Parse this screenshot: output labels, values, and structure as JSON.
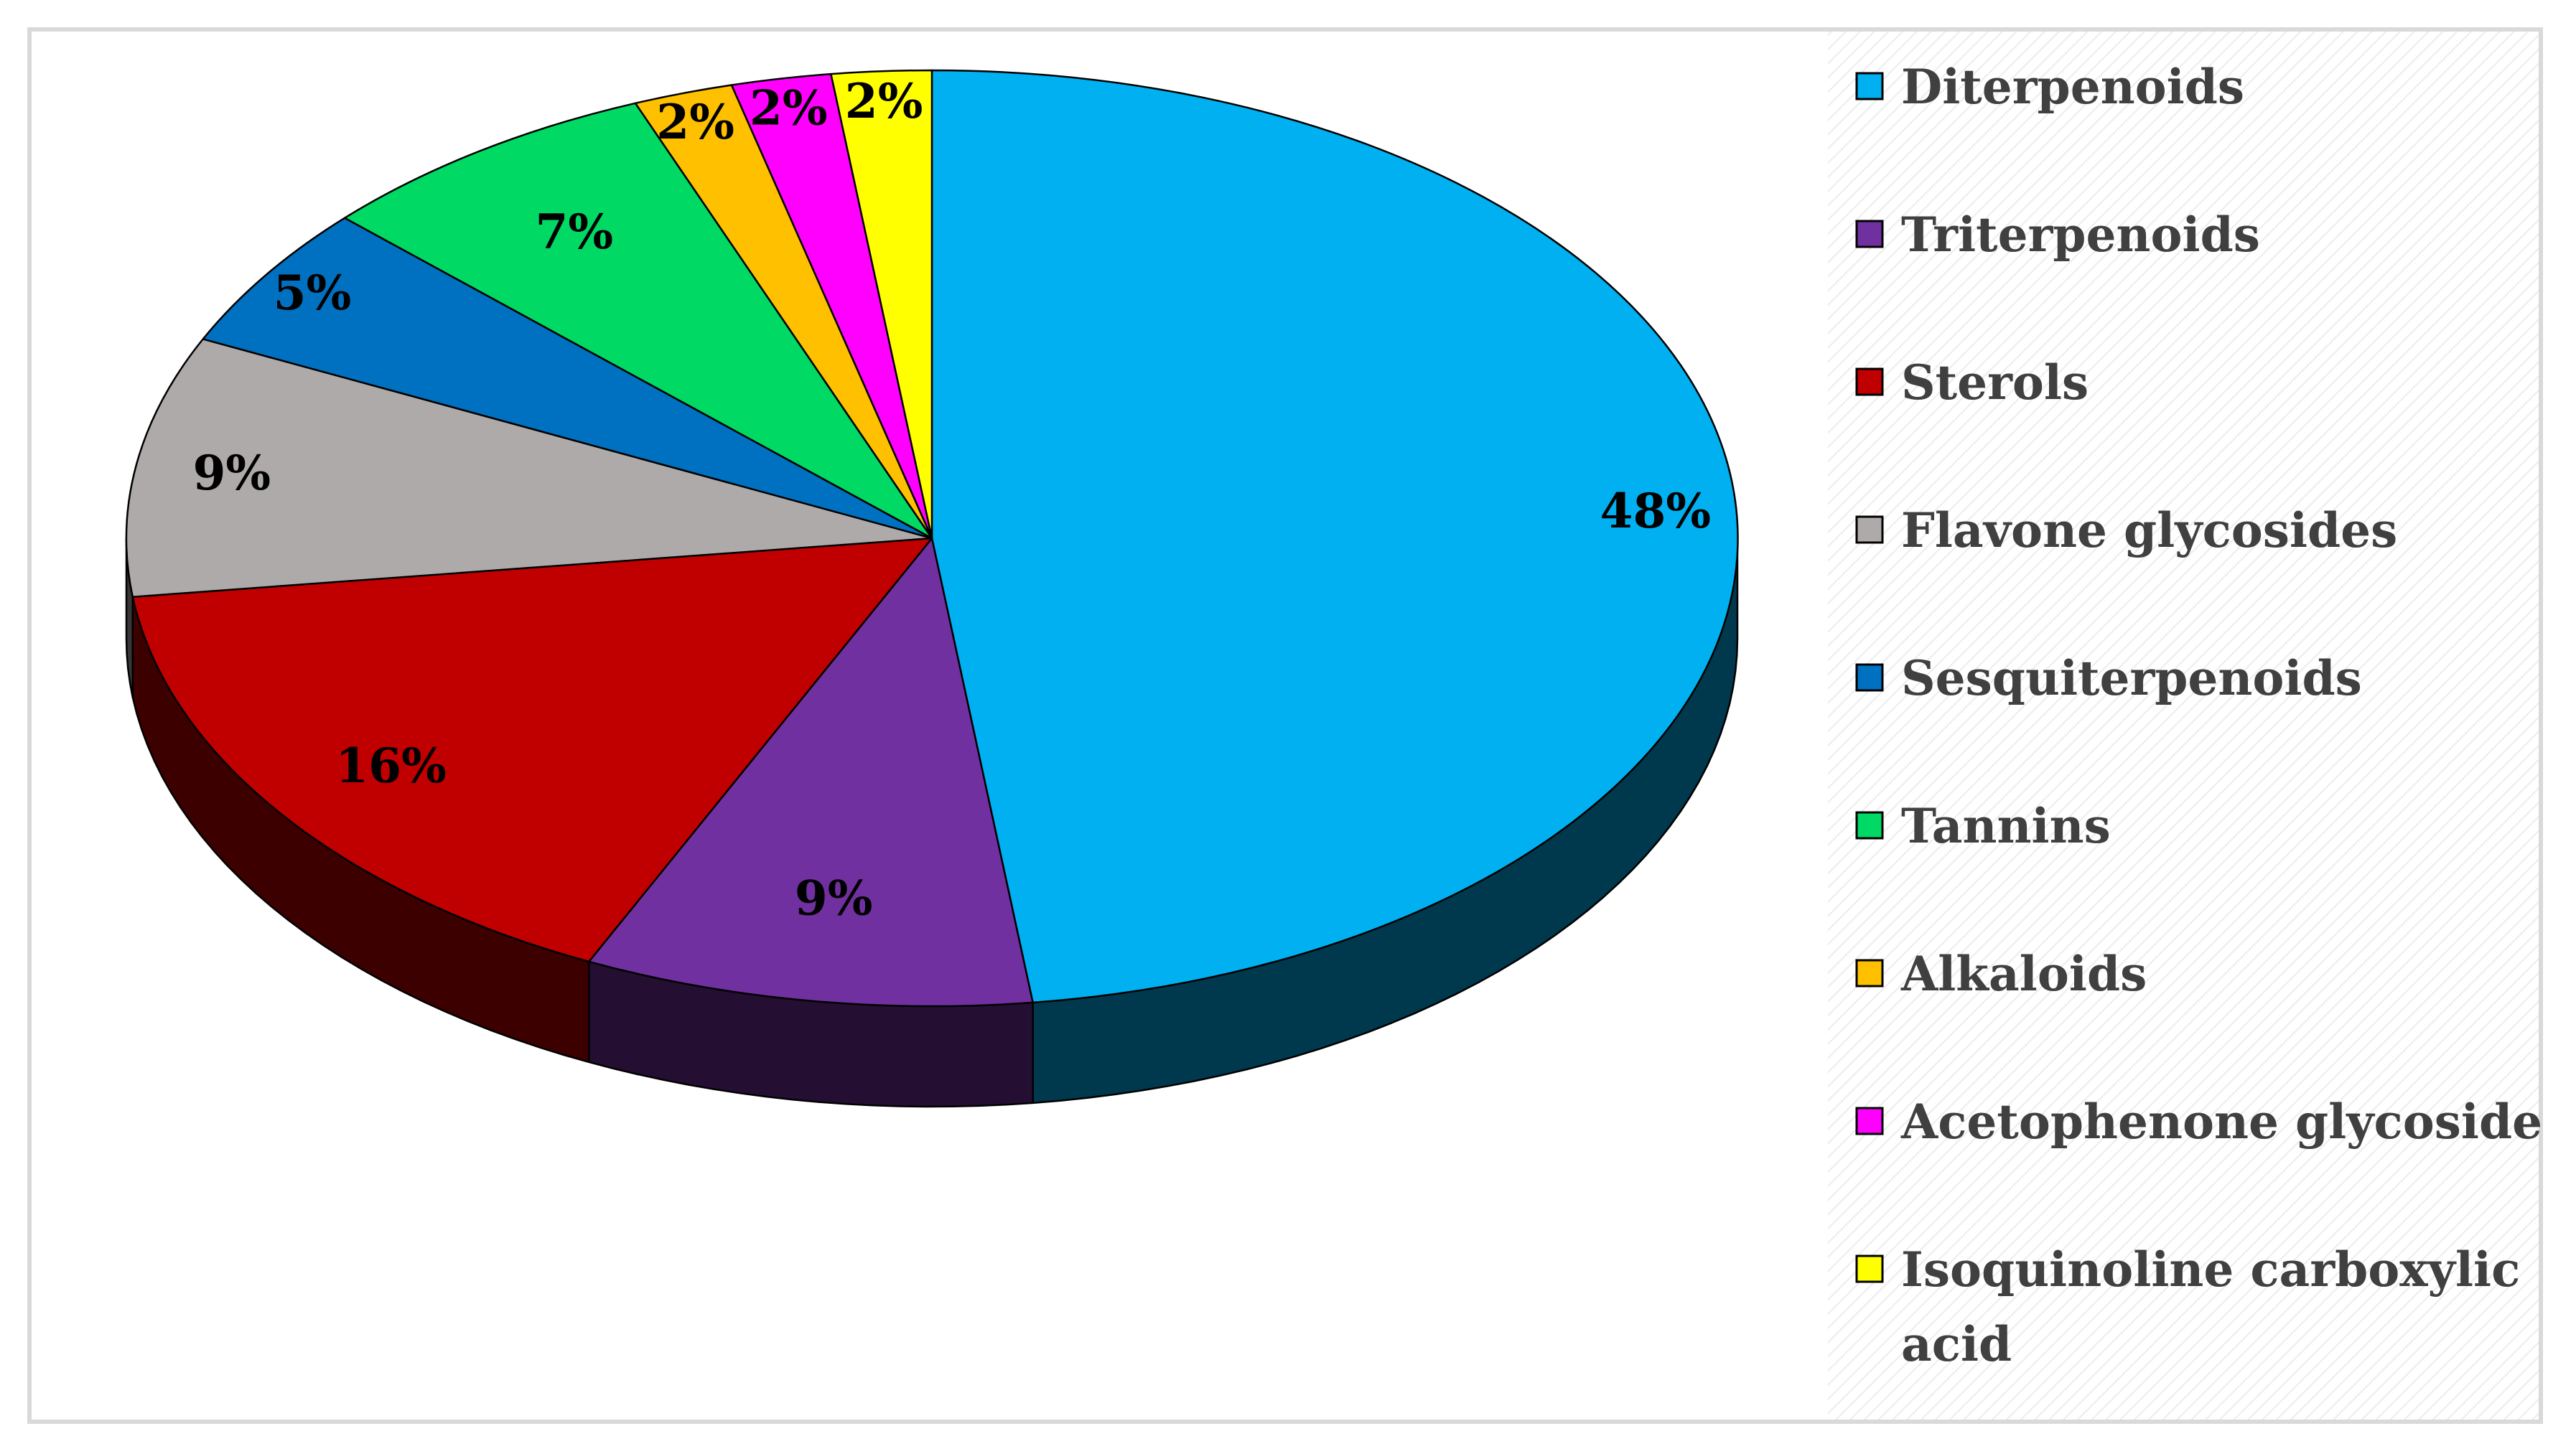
{
  "chart_data": {
    "type": "pie",
    "title": "",
    "style": "3d",
    "legend_position": "right",
    "start_angle_deg": 0,
    "direction": "clockwise",
    "slices": [
      {
        "label": "Diterpenoids",
        "value": 48,
        "value_label": "48%",
        "color": "#00B0F0"
      },
      {
        "label": "Triterpenoids",
        "value": 9,
        "value_label": "9%",
        "color": "#7030A0"
      },
      {
        "label": "Sterols",
        "value": 16,
        "value_label": "16%",
        "color": "#C00000"
      },
      {
        "label": "Flavone glycosides",
        "value": 9,
        "value_label": "9%",
        "color": "#AEAAAA"
      },
      {
        "label": "Sesquiterpenoids",
        "value": 5,
        "value_label": "5%",
        "color": "#0070C0"
      },
      {
        "label": "Tannins",
        "value": 7,
        "value_label": "7%",
        "color": "#00D964"
      },
      {
        "label": "Alkaloids",
        "value": 2,
        "value_label": "2%",
        "color": "#FFC000"
      },
      {
        "label": "Acetophenone glycoside",
        "value": 2,
        "value_label": "2%",
        "color": "#FF00FF"
      },
      {
        "label": "Isoquinoline carboxylic acid",
        "value": 2,
        "value_label": "2%",
        "color": "#FFFF00"
      }
    ]
  }
}
